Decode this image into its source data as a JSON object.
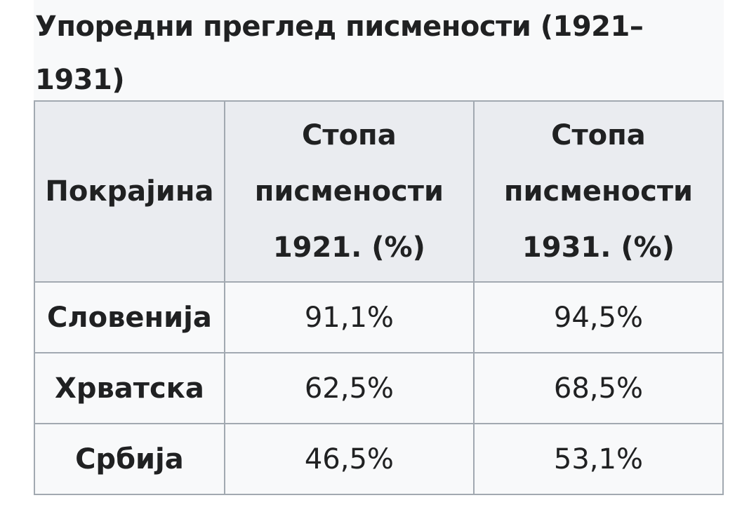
{
  "table": {
    "caption": "Упоредни преглед писмености (1921–1931)",
    "header": [
      "Покрајина",
      "Стопа писмености 1921. (%)",
      "Стопа писмености 1931. (%)"
    ],
    "rows": [
      [
        "Словенија",
        "91,1%",
        "94,5%"
      ],
      [
        "Хрватска",
        "62,5%",
        "68,5%"
      ],
      [
        "Србија",
        "46,5%",
        "53,1%"
      ]
    ]
  }
}
